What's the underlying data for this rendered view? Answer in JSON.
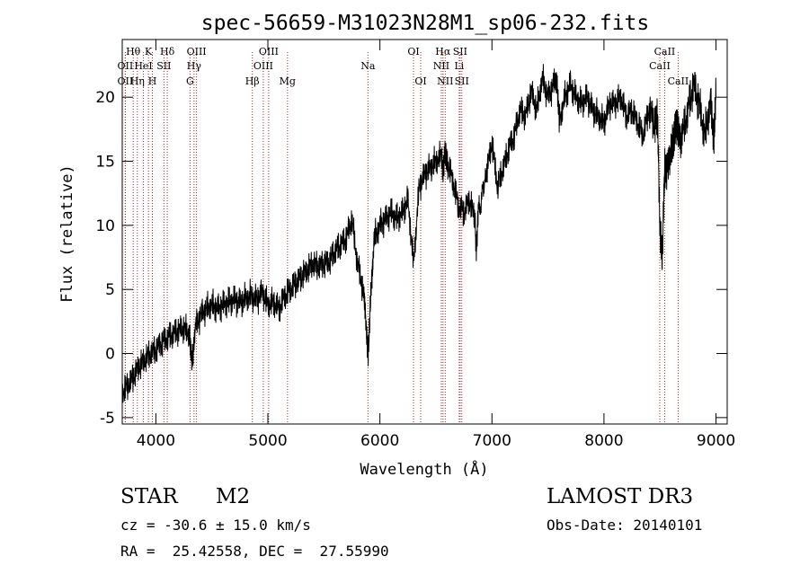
{
  "chart_data": {
    "type": "line",
    "title": "spec-56659-M31023N28M1_sp06-232.fits",
    "xlabel": "Wavelength (Å)",
    "ylabel": "Flux (relative)",
    "xlim": [
      3700,
      9100
    ],
    "ylim": [
      -5.5,
      24.5
    ],
    "x_ticks": [
      4000,
      5000,
      6000,
      7000,
      8000,
      9000
    ],
    "y_ticks": [
      -5,
      0,
      5,
      10,
      15,
      20
    ],
    "grid": false,
    "line_color": "#000000",
    "marker_color": "#b22222",
    "series": [
      {
        "x": [
          3700,
          3750,
          3800,
          3850,
          3900,
          3950,
          4000,
          4050,
          4100,
          4150,
          4200,
          4250,
          4300,
          4320,
          4350,
          4400,
          4450,
          4500,
          4550,
          4600,
          4650,
          4700,
          4750,
          4800,
          4850,
          4900,
          4950,
          5000,
          5050,
          5100,
          5150,
          5200,
          5250,
          5300,
          5350,
          5400,
          5450,
          5500,
          5550,
          5600,
          5650,
          5700,
          5750,
          5800,
          5850,
          5880,
          5895,
          5905,
          5920,
          5950,
          6000,
          6050,
          6100,
          6150,
          6200,
          6250,
          6300,
          6350,
          6400,
          6450,
          6500,
          6550,
          6563,
          6580,
          6600,
          6650,
          6700,
          6750,
          6800,
          6850,
          6860,
          6880,
          6950,
          7000,
          7050,
          7100,
          7150,
          7200,
          7250,
          7300,
          7350,
          7400,
          7450,
          7500,
          7550,
          7580,
          7600,
          7650,
          7700,
          7750,
          7800,
          7850,
          7900,
          7950,
          8000,
          8050,
          8100,
          8150,
          8200,
          8250,
          8300,
          8350,
          8400,
          8450,
          8480,
          8500,
          8520,
          8542,
          8560,
          8600,
          8620,
          8640,
          8662,
          8700,
          8750,
          8800,
          8850,
          8900,
          8950,
          8980,
          9000
        ],
        "y": [
          -3,
          -2.5,
          -1.8,
          -1,
          -0.5,
          0,
          0.3,
          0.8,
          1.2,
          1.5,
          1.8,
          2,
          1.5,
          -1,
          2,
          3,
          3.5,
          3.8,
          3.5,
          3.8,
          4,
          4.2,
          4,
          4.3,
          4.5,
          4.2,
          4.8,
          3.8,
          4,
          3.5,
          4.5,
          5,
          5.5,
          6,
          6.5,
          7,
          6.8,
          7,
          7.2,
          8,
          8.5,
          9,
          10.5,
          7,
          5,
          2,
          0,
          1.5,
          5,
          9,
          10,
          10.5,
          11,
          10.5,
          11,
          12,
          7,
          13,
          14,
          14.5,
          15,
          15.5,
          14.5,
          15.5,
          15,
          13.5,
          11.5,
          11,
          12,
          10.5,
          8,
          11,
          14,
          16.5,
          13,
          14.5,
          16,
          17,
          19,
          18.5,
          20.5,
          19,
          21.5,
          20,
          21,
          21.5,
          18,
          20,
          21,
          20,
          19.5,
          20,
          19,
          18.5,
          18,
          19.5,
          19.5,
          20,
          18.5,
          19,
          18,
          17,
          19,
          18,
          18,
          10,
          7,
          15,
          14,
          16,
          16,
          18.5,
          17,
          17,
          19,
          21,
          19.5,
          17,
          19.5,
          17,
          20
        ]
      }
    ],
    "line_markers": [
      {
        "label": "Hθ",
        "wl": 3798,
        "row": 1
      },
      {
        "label": "OII",
        "wl": 3727,
        "row": 2
      },
      {
        "label": "OII",
        "wl": 3727,
        "row": 3
      },
      {
        "label": "K",
        "wl": 3934,
        "row": 1
      },
      {
        "label": "HeI",
        "wl": 3889,
        "row": 2
      },
      {
        "label": "Hη",
        "wl": 3835,
        "row": 3
      },
      {
        "label": "H",
        "wl": 3969,
        "row": 3
      },
      {
        "label": "SII",
        "wl": 4072,
        "row": 2
      },
      {
        "label": "Hδ",
        "wl": 4102,
        "row": 1
      },
      {
        "label": "OIII",
        "wl": 4363,
        "row": 1
      },
      {
        "label": "Hγ",
        "wl": 4341,
        "row": 2
      },
      {
        "label": "G",
        "wl": 4305,
        "row": 3
      },
      {
        "label": "Hβ",
        "wl": 4861,
        "row": 3
      },
      {
        "label": "OIII",
        "wl": 4959,
        "row": 2
      },
      {
        "label": "OIII",
        "wl": 5007,
        "row": 1
      },
      {
        "label": "Mg",
        "wl": 5175,
        "row": 3
      },
      {
        "label": "Na",
        "wl": 5893,
        "row": 2
      },
      {
        "label": "OI",
        "wl": 6300,
        "row": 1
      },
      {
        "label": "OI",
        "wl": 6364,
        "row": 3
      },
      {
        "label": "Hα",
        "wl": 6563,
        "row": 1
      },
      {
        "label": "NII",
        "wl": 6548,
        "row": 2
      },
      {
        "label": "NII",
        "wl": 6583,
        "row": 3
      },
      {
        "label": "SII",
        "wl": 6716,
        "row": 1
      },
      {
        "label": "Li",
        "wl": 6708,
        "row": 2
      },
      {
        "label": "SII",
        "wl": 6731,
        "row": 3
      },
      {
        "label": "CaII",
        "wl": 8498,
        "row": 2
      },
      {
        "label": "CaII",
        "wl": 8542,
        "row": 1
      },
      {
        "label": "CaII",
        "wl": 8662,
        "row": 3
      }
    ]
  },
  "info": {
    "object_class": "STAR",
    "subclass": "M2",
    "survey": "LAMOST DR3",
    "cz": "cz = -30.6 ± 15.0 km/s",
    "obs_date": "Obs-Date: 20140101",
    "coords": "RA =  25.42558, DEC =  27.55990"
  }
}
